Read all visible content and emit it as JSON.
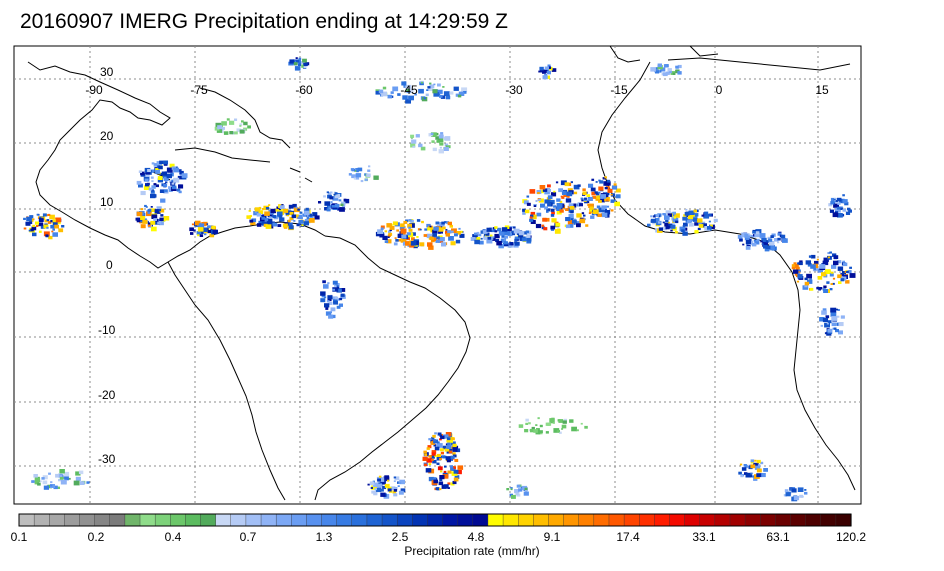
{
  "title": "20160907 IMERG Precipitation ending at 14:29:59 Z",
  "map": {
    "lon_labels": [
      "-90",
      "-75",
      "-60",
      "-45",
      "-30",
      "-15",
      "0",
      "15"
    ],
    "lat_labels": [
      "30",
      "20",
      "10",
      "0",
      "-10",
      "-20",
      "-30"
    ],
    "gridline_color": "#8c8c8c",
    "coast_color": "#000000"
  },
  "colorbar": {
    "label": "Precipitation rate (mm/hr)",
    "ticks": [
      "0.1",
      "0.2",
      "0.4",
      "0.7",
      "1.3",
      "2.5",
      "4.8",
      "9.1",
      "17.4",
      "33.1",
      "63.1",
      "120.2"
    ],
    "colors": [
      "#bebebe",
      "#b2b2b2",
      "#a7a7a7",
      "#9c9c9c",
      "#919191",
      "#868686",
      "#7b7b7b",
      "#70b56a",
      "#8fdc8a",
      "#7dd27a",
      "#6cc76a",
      "#5cbc60",
      "#52ab5c",
      "#c8d8f5",
      "#b5cbf5",
      "#a2bff6",
      "#8fb3f6",
      "#7ca8f5",
      "#6a9df2",
      "#5891ef",
      "#4786ea",
      "#377be3",
      "#2a70dc",
      "#1e63d3",
      "#1354c9",
      "#0a44bf",
      "#0233b3",
      "#0025ab",
      "#0016a3",
      "#000f9a",
      "#000992",
      "#fffc00",
      "#ffe700",
      "#ffd300",
      "#ffbe00",
      "#ffa900",
      "#ff9500",
      "#ff8000",
      "#ff6c00",
      "#ff5800",
      "#ff4400",
      "#ff3000",
      "#ff1c00",
      "#f40a00",
      "#dd0000",
      "#c80000",
      "#b40000",
      "#a10000",
      "#8e0000",
      "#7b0000",
      "#6a0000",
      "#5b0000",
      "#4d0000",
      "#420000",
      "#3a0000"
    ]
  }
}
